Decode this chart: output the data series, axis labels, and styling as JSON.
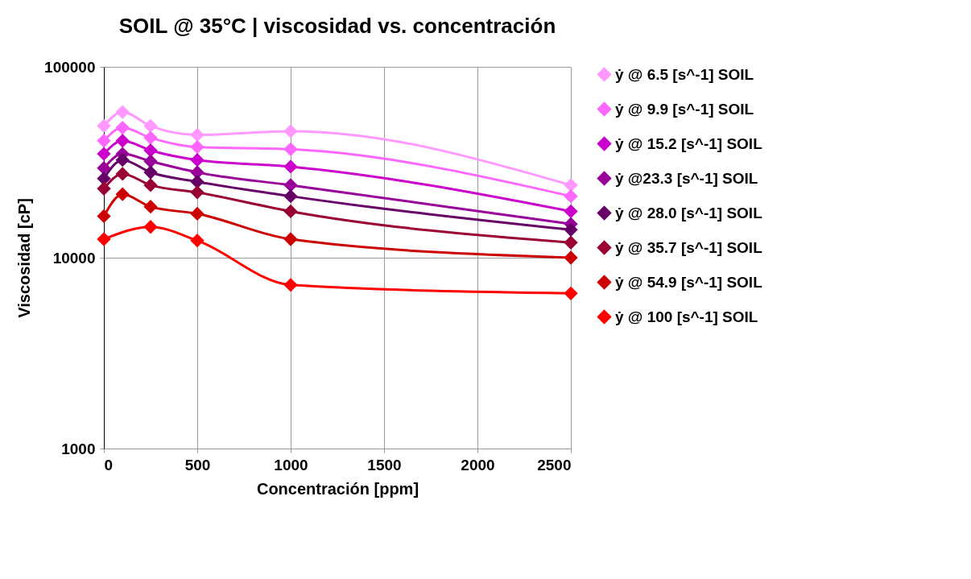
{
  "chart_data": {
    "type": "line",
    "title": "SOIL @ 35°C | viscosidad vs. concentración",
    "xlabel": "Concentración [ppm]",
    "ylabel": "Viscosidad [cP]",
    "x": [
      0,
      100,
      250,
      500,
      1000,
      2500
    ],
    "series": [
      {
        "name": "ẏ @ 6.5 [s^-1] SOIL",
        "color": "#ff99ff",
        "values": [
          49000,
          58000,
          49000,
          44000,
          46000,
          24000
        ]
      },
      {
        "name": "ẏ @ 9.9 [s^-1] SOIL",
        "color": "#ff66ff",
        "values": [
          41000,
          48000,
          42500,
          38000,
          37000,
          21000
        ]
      },
      {
        "name": "ẏ @ 15.2 [s^-1] SOIL",
        "color": "#cc00cc",
        "values": [
          35000,
          41000,
          36500,
          32500,
          30000,
          17500
        ]
      },
      {
        "name": "ẏ @23.3 [s^-1] SOIL",
        "color": "#990099",
        "values": [
          29500,
          35000,
          32000,
          28000,
          24000,
          15000
        ]
      },
      {
        "name": "ẏ @ 28.0 [s^-1] SOIL",
        "color": "#660066",
        "values": [
          26000,
          32500,
          28000,
          25000,
          21000,
          14000
        ]
      },
      {
        "name": "ẏ @ 35.7 [s^-1] SOIL",
        "color": "#990033",
        "values": [
          23000,
          27500,
          24000,
          22000,
          17500,
          12000
        ]
      },
      {
        "name": "ẏ @ 54.9 [s^-1] SOIL",
        "color": "#cc0000",
        "values": [
          16500,
          21500,
          18500,
          17000,
          12500,
          10000
        ]
      },
      {
        "name": "ẏ @ 100 [s^-1] SOIL",
        "color": "#ff0000",
        "x": [
          0,
          250,
          500,
          1000,
          2500
        ],
        "values": [
          12500,
          14500,
          12300,
          7200,
          6500
        ]
      }
    ],
    "xlim": [
      0,
      2500
    ],
    "xticks": [
      0,
      500,
      1000,
      1500,
      2000,
      2500
    ],
    "ylim": [
      1000,
      100000
    ],
    "yticks": [
      1000,
      10000,
      100000
    ],
    "log": "y",
    "grid": true,
    "legend": "right",
    "marker": "diamond",
    "line_style": "solid"
  }
}
